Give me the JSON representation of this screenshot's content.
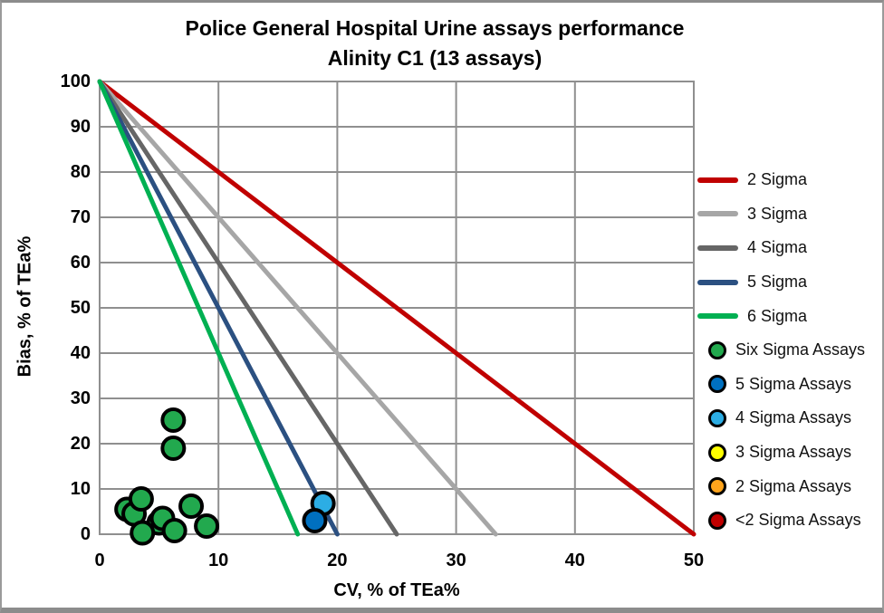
{
  "chart_data": {
    "type": "scatter",
    "title": "Police General Hospital Urine assays performance",
    "subtitle": "Alinity C1 (13 assays)",
    "xlabel": "CV, % of TEa%",
    "ylabel": "Bias, % of TEa%",
    "xlim": [
      0,
      50
    ],
    "ylim": [
      0,
      100
    ],
    "x_ticks": [
      0,
      10,
      20,
      30,
      40,
      50
    ],
    "y_ticks": [
      0,
      10,
      20,
      30,
      40,
      50,
      60,
      70,
      80,
      90,
      100
    ],
    "grid": true,
    "gridline_color": "#8f8f8f",
    "legend_position": "right",
    "sigma_lines": [
      {
        "name": "2 Sigma",
        "color": "#C00000",
        "points": [
          [
            0,
            100
          ],
          [
            50,
            0
          ]
        ]
      },
      {
        "name": "3 Sigma",
        "color": "#A6A6A6",
        "points": [
          [
            0,
            100
          ],
          [
            33.33,
            0
          ]
        ]
      },
      {
        "name": "4 Sigma",
        "color": "#666666",
        "points": [
          [
            0,
            100
          ],
          [
            25,
            0
          ]
        ]
      },
      {
        "name": "5 Sigma",
        "color": "#2B5081",
        "points": [
          [
            0,
            100
          ],
          [
            20,
            0
          ]
        ]
      },
      {
        "name": "6 Sigma",
        "color": "#00B052",
        "points": [
          [
            0,
            100
          ],
          [
            16.67,
            0
          ]
        ]
      }
    ],
    "series": [
      {
        "name": "Six Sigma Assays",
        "color": "#22A94E",
        "points": [
          [
            2.3,
            5.5
          ],
          [
            2.9,
            4.5
          ],
          [
            5.0,
            2.5
          ],
          [
            5.3,
            3.5
          ],
          [
            3.5,
            7.8
          ],
          [
            7.7,
            6.2
          ],
          [
            3.6,
            0.3
          ],
          [
            6.3,
            0.8
          ],
          [
            9.0,
            1.8
          ],
          [
            6.2,
            25.2
          ],
          [
            6.2,
            19.0
          ]
        ]
      },
      {
        "name": "4 Sigma Assays",
        "color": "#2CADE4",
        "points": [
          [
            18.8,
            6.8
          ]
        ]
      },
      {
        "name": "5 Sigma Assays",
        "color": "#0070C0",
        "points": [
          [
            18.1,
            3.0
          ]
        ]
      }
    ],
    "legend": {
      "entries": [
        {
          "type": "line",
          "label": "2 Sigma",
          "color": "#C00000"
        },
        {
          "type": "line",
          "label": "3 Sigma",
          "color": "#A6A6A6"
        },
        {
          "type": "line",
          "label": "4 Sigma",
          "color": "#666666"
        },
        {
          "type": "line",
          "label": "5 Sigma",
          "color": "#2B5081"
        },
        {
          "type": "line",
          "label": "6 Sigma",
          "color": "#00B052"
        },
        {
          "type": "marker",
          "label": "Six Sigma Assays",
          "color": "#22A94E"
        },
        {
          "type": "marker",
          "label": "5 Sigma Assays",
          "color": "#0070C0"
        },
        {
          "type": "marker",
          "label": "4 Sigma Assays",
          "color": "#2CADE4"
        },
        {
          "type": "marker",
          "label": "3 Sigma Assays",
          "color": "#FFFF00"
        },
        {
          "type": "marker",
          "label": "2 Sigma Assays",
          "color": "#FFA41C"
        },
        {
          "type": "marker",
          "label": "<2 Sigma Assays",
          "color": "#C00000"
        }
      ]
    }
  }
}
